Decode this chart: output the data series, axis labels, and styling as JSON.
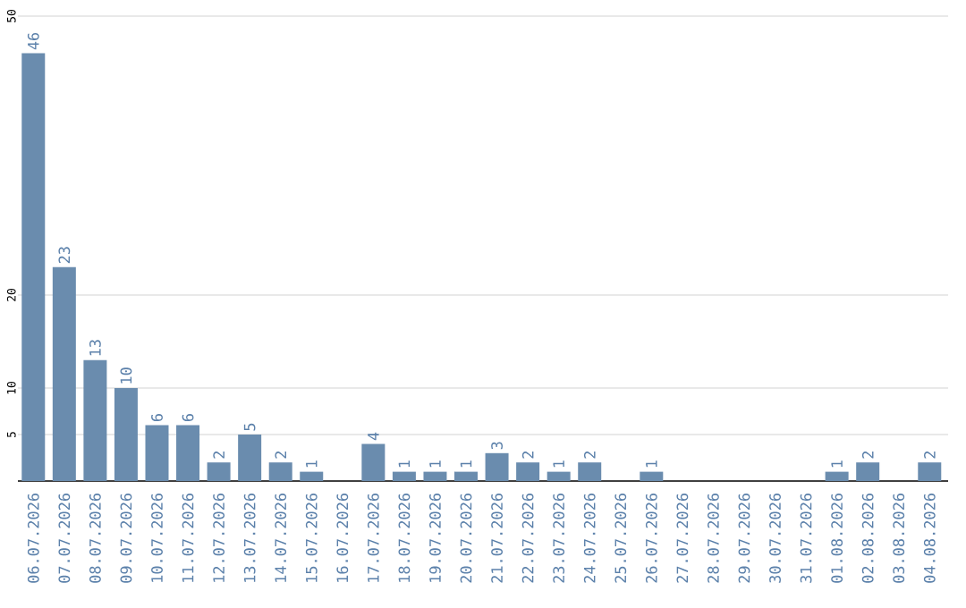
{
  "chart_data": {
    "type": "bar",
    "categories": [
      "06.07.2026",
      "07.07.2026",
      "08.07.2026",
      "09.07.2026",
      "10.07.2026",
      "11.07.2026",
      "12.07.2026",
      "13.07.2026",
      "14.07.2026",
      "15.07.2026",
      "16.07.2026",
      "17.07.2026",
      "18.07.2026",
      "19.07.2026",
      "20.07.2026",
      "21.07.2026",
      "22.07.2026",
      "23.07.2026",
      "24.07.2026",
      "25.07.2026",
      "26.07.2026",
      "27.07.2026",
      "28.07.2026",
      "29.07.2026",
      "30.07.2026",
      "31.07.2026",
      "01.08.2026",
      "02.08.2026",
      "03.08.2026",
      "04.08.2026"
    ],
    "values": [
      46,
      23,
      13,
      10,
      6,
      6,
      2,
      5,
      2,
      1,
      0,
      4,
      1,
      1,
      1,
      3,
      2,
      1,
      2,
      0,
      1,
      0,
      0,
      0,
      0,
      0,
      1,
      2,
      0,
      2
    ],
    "value_labels": [
      "46",
      "23",
      "13",
      "10",
      "6",
      "6",
      "2",
      "5",
      "2",
      "1",
      null,
      "4",
      "1",
      "1",
      "1",
      "3",
      "2",
      "1",
      "2",
      null,
      "1",
      null,
      null,
      null,
      null,
      null,
      "1",
      "2",
      null,
      "2"
    ],
    "color": "#6a8cae",
    "ylim": [
      0,
      50
    ],
    "yticks": [
      5,
      10,
      20,
      50
    ],
    "grid": "y"
  }
}
